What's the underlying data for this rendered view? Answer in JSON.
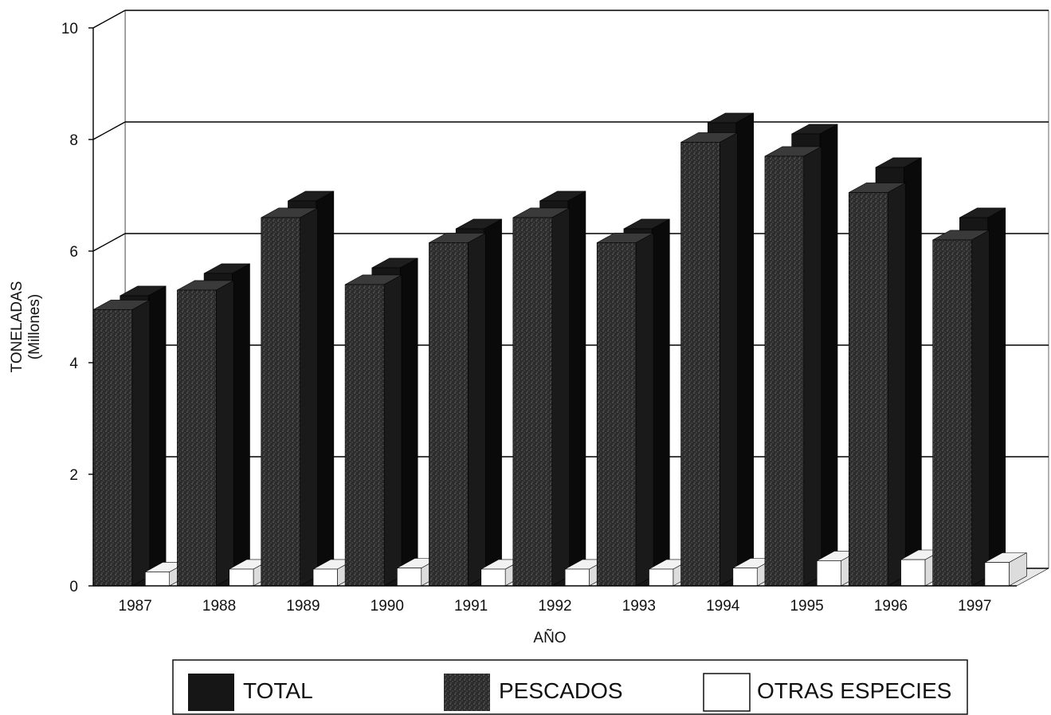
{
  "chart_data": {
    "type": "bar",
    "style": "3d-grouped",
    "xlabel": "AÑO",
    "ylabel": "TONELADAS",
    "ylabel_unit": "(Millones)",
    "ylim": [
      0,
      10
    ],
    "yticks": [
      0,
      2,
      4,
      6,
      8,
      10
    ],
    "categories": [
      "1987",
      "1988",
      "1989",
      "1990",
      "1991",
      "1992",
      "1993",
      "1994",
      "1995",
      "1996",
      "1997"
    ],
    "series": [
      {
        "name": "TOTAL",
        "color": "#161616",
        "values": [
          5.2,
          5.6,
          6.9,
          5.7,
          6.4,
          6.9,
          6.4,
          8.3,
          8.1,
          7.5,
          6.6
        ]
      },
      {
        "name": "PESCADOS",
        "color": "#2f2f2f",
        "values": [
          4.95,
          5.3,
          6.6,
          5.4,
          6.15,
          6.6,
          6.15,
          7.95,
          7.7,
          7.05,
          6.2
        ]
      },
      {
        "name": "OTRAS ESPECIES",
        "color": "#ffffff",
        "values": [
          0.25,
          0.3,
          0.3,
          0.32,
          0.3,
          0.3,
          0.3,
          0.32,
          0.45,
          0.47,
          0.42
        ]
      }
    ],
    "grid": true,
    "legend_position": "bottom"
  }
}
